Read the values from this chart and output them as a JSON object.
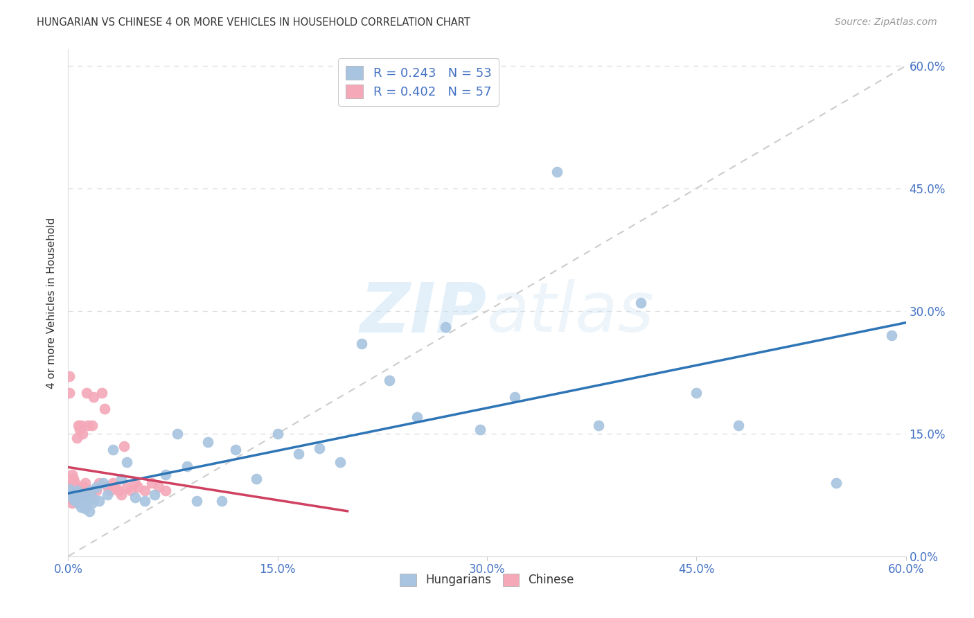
{
  "title": "HUNGARIAN VS CHINESE 4 OR MORE VEHICLES IN HOUSEHOLD CORRELATION CHART",
  "source": "Source: ZipAtlas.com",
  "tick_color": "#4472c4",
  "ylabel": "4 or more Vehicles in Household",
  "xlim": [
    0.0,
    0.6
  ],
  "ylim": [
    0.0,
    0.62
  ],
  "ticks": [
    0.0,
    0.15,
    0.3,
    0.45,
    0.6
  ],
  "tick_labels": [
    "0.0%",
    "15.0%",
    "30.0%",
    "45.0%",
    "60.0%"
  ],
  "background_color": "#ffffff",
  "grid_color": "#dddddd",
  "watermark_text": "ZIPatlas",
  "hungarian_color": "#a8c4e0",
  "chinese_color": "#f4a8b8",
  "hungarian_R": 0.243,
  "hungarian_N": 53,
  "chinese_R": 0.402,
  "chinese_N": 57,
  "hungarian_line_color": "#2e75b6",
  "chinese_line_color": "#d04060",
  "diagonal_color": "#cccccc",
  "hungarian_x": [
    0.001,
    0.002,
    0.003,
    0.004,
    0.005,
    0.006,
    0.007,
    0.008,
    0.009,
    0.01,
    0.011,
    0.012,
    0.013,
    0.014,
    0.015,
    0.016,
    0.017,
    0.018,
    0.02,
    0.022,
    0.025,
    0.028,
    0.032,
    0.038,
    0.042,
    0.048,
    0.055,
    0.062,
    0.07,
    0.078,
    0.085,
    0.092,
    0.1,
    0.11,
    0.12,
    0.135,
    0.15,
    0.165,
    0.18,
    0.195,
    0.21,
    0.23,
    0.25,
    0.27,
    0.295,
    0.32,
    0.35,
    0.38,
    0.41,
    0.45,
    0.48,
    0.55,
    0.59
  ],
  "hungarian_y": [
    0.082,
    0.078,
    0.072,
    0.075,
    0.068,
    0.08,
    0.065,
    0.07,
    0.06,
    0.075,
    0.063,
    0.058,
    0.072,
    0.068,
    0.055,
    0.08,
    0.065,
    0.07,
    0.085,
    0.068,
    0.09,
    0.075,
    0.13,
    0.095,
    0.115,
    0.072,
    0.068,
    0.075,
    0.1,
    0.15,
    0.11,
    0.068,
    0.14,
    0.068,
    0.13,
    0.095,
    0.15,
    0.125,
    0.132,
    0.115,
    0.26,
    0.215,
    0.17,
    0.28,
    0.155,
    0.195,
    0.47,
    0.16,
    0.31,
    0.2,
    0.16,
    0.09,
    0.27
  ],
  "chinese_x": [
    0.001,
    0.001,
    0.001,
    0.002,
    0.002,
    0.002,
    0.002,
    0.003,
    0.003,
    0.003,
    0.003,
    0.003,
    0.004,
    0.004,
    0.004,
    0.005,
    0.005,
    0.005,
    0.006,
    0.006,
    0.006,
    0.007,
    0.007,
    0.007,
    0.008,
    0.008,
    0.009,
    0.009,
    0.01,
    0.011,
    0.011,
    0.012,
    0.013,
    0.014,
    0.015,
    0.016,
    0.017,
    0.018,
    0.02,
    0.022,
    0.024,
    0.026,
    0.028,
    0.03,
    0.032,
    0.034,
    0.036,
    0.038,
    0.04,
    0.042,
    0.045,
    0.048,
    0.05,
    0.055,
    0.06,
    0.065,
    0.07
  ],
  "chinese_y": [
    0.075,
    0.22,
    0.2,
    0.08,
    0.07,
    0.085,
    0.075,
    0.065,
    0.09,
    0.08,
    0.07,
    0.1,
    0.085,
    0.075,
    0.095,
    0.08,
    0.07,
    0.09,
    0.145,
    0.085,
    0.075,
    0.16,
    0.08,
    0.075,
    0.155,
    0.085,
    0.16,
    0.075,
    0.15,
    0.085,
    0.08,
    0.09,
    0.2,
    0.16,
    0.08,
    0.075,
    0.16,
    0.195,
    0.08,
    0.09,
    0.2,
    0.18,
    0.085,
    0.08,
    0.09,
    0.085,
    0.08,
    0.075,
    0.135,
    0.085,
    0.08,
    0.09,
    0.085,
    0.08,
    0.09,
    0.085,
    0.08
  ]
}
